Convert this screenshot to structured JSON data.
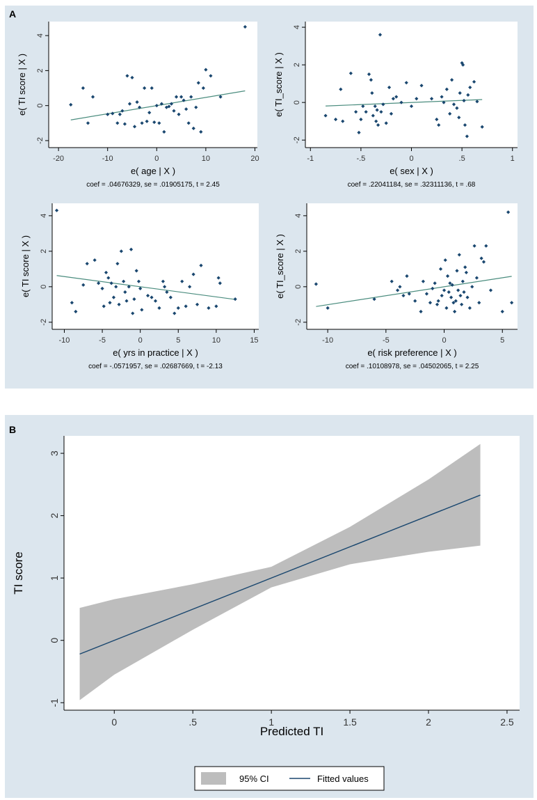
{
  "panels": {
    "a_label": "A",
    "b_label": "B"
  },
  "colors": {
    "panel_bg": "#dce6ee",
    "plot_bg": "#ffffff",
    "marker": "#1a476f",
    "fit_a": "#4a8c7e",
    "fit_b": "#1a476f",
    "ci_fill": "#bdbdbd"
  },
  "chart_data": [
    {
      "type": "scatter",
      "id": "age",
      "xlabel": "e( age | X )",
      "ylabel": "e( TI score | X )",
      "caption": "coef = .04676329, se = .01905175, t = 2.45",
      "xlim": [
        -22,
        20.5
      ],
      "ylim": [
        -2.4,
        4.8
      ],
      "xticks": [
        -20,
        -10,
        0,
        10,
        20
      ],
      "xtick_labels": [
        "-20",
        "-10",
        "0",
        "10",
        "20"
      ],
      "yticks": [
        -2,
        0,
        2,
        4
      ],
      "ytick_labels": [
        "-2",
        "0",
        "2",
        "4"
      ],
      "slope": 0.04676329,
      "points": [
        [
          -17.5,
          0.05
        ],
        [
          -15,
          1.0
        ],
        [
          -14,
          -1.0
        ],
        [
          -13,
          0.5
        ],
        [
          -10,
          -0.5
        ],
        [
          -9,
          -0.45
        ],
        [
          -8,
          -1.0
        ],
        [
          -7.5,
          -0.5
        ],
        [
          -7,
          -0.3
        ],
        [
          -6.5,
          -1.05
        ],
        [
          -6,
          1.7
        ],
        [
          -5.5,
          0.1
        ],
        [
          -5,
          1.6
        ],
        [
          -4.5,
          -1.2
        ],
        [
          -4,
          0.2
        ],
        [
          -3.5,
          -0.1
        ],
        [
          -3,
          -1.0
        ],
        [
          -2.5,
          1.0
        ],
        [
          -2,
          -0.9
        ],
        [
          -1.5,
          -0.4
        ],
        [
          -1,
          1.0
        ],
        [
          -0.5,
          -0.95
        ],
        [
          0,
          0.0
        ],
        [
          0.5,
          -1.0
        ],
        [
          1,
          0.1
        ],
        [
          1.5,
          -1.5
        ],
        [
          2,
          -0.1
        ],
        [
          2.5,
          -0.05
        ],
        [
          3,
          0.1
        ],
        [
          3.5,
          -0.3
        ],
        [
          4,
          0.5
        ],
        [
          4.5,
          -0.5
        ],
        [
          5,
          0.5
        ],
        [
          5.5,
          0.3
        ],
        [
          6,
          -0.2
        ],
        [
          6.5,
          -1.0
        ],
        [
          7,
          0.5
        ],
        [
          7.5,
          -1.3
        ],
        [
          8,
          -0.1
        ],
        [
          8.5,
          1.3
        ],
        [
          9,
          -1.5
        ],
        [
          9.5,
          1.0
        ],
        [
          10,
          2.05
        ],
        [
          11,
          1.7
        ],
        [
          13,
          0.5
        ],
        [
          18,
          4.5
        ]
      ]
    },
    {
      "type": "scatter",
      "id": "sex",
      "xlabel": "e( sex | X )",
      "ylabel": "e( TI_score | X )",
      "caption": "coef = .22041184, se = .32311136, t = .68",
      "xlim": [
        -1.05,
        1.05
      ],
      "ylim": [
        -2.4,
        4.3
      ],
      "xticks": [
        -1,
        -0.5,
        0,
        0.5,
        1
      ],
      "xtick_labels": [
        "-1",
        "-.5",
        "0",
        ".5",
        "1"
      ],
      "yticks": [
        -2,
        0,
        2,
        4
      ],
      "ytick_labels": [
        "-2",
        "0",
        "2",
        "4"
      ],
      "slope": 0.22041184,
      "points": [
        [
          -0.85,
          -0.7
        ],
        [
          -0.75,
          -0.9
        ],
        [
          -0.7,
          0.7
        ],
        [
          -0.68,
          -1.0
        ],
        [
          -0.6,
          1.55
        ],
        [
          -0.55,
          -0.5
        ],
        [
          -0.52,
          -1.6
        ],
        [
          -0.5,
          -0.9
        ],
        [
          -0.48,
          -0.2
        ],
        [
          -0.45,
          -0.5
        ],
        [
          -0.42,
          1.5
        ],
        [
          -0.4,
          1.2
        ],
        [
          -0.39,
          0.5
        ],
        [
          -0.38,
          -0.7
        ],
        [
          -0.36,
          -0.2
        ],
        [
          -0.35,
          -1.0
        ],
        [
          -0.34,
          -0.4
        ],
        [
          -0.33,
          -1.2
        ],
        [
          -0.31,
          3.6
        ],
        [
          -0.3,
          -0.5
        ],
        [
          -0.28,
          -0.1
        ],
        [
          -0.25,
          -1.1
        ],
        [
          -0.22,
          0.8
        ],
        [
          -0.2,
          -0.6
        ],
        [
          -0.18,
          0.2
        ],
        [
          -0.15,
          0.3
        ],
        [
          -0.1,
          0.0
        ],
        [
          -0.05,
          1.05
        ],
        [
          0.0,
          -0.2
        ],
        [
          0.05,
          0.2
        ],
        [
          0.1,
          0.9
        ],
        [
          0.2,
          0.2
        ],
        [
          0.25,
          -0.9
        ],
        [
          0.27,
          -1.2
        ],
        [
          0.3,
          0.3
        ],
        [
          0.32,
          0.0
        ],
        [
          0.35,
          0.7
        ],
        [
          0.38,
          -0.6
        ],
        [
          0.4,
          1.2
        ],
        [
          0.42,
          -0.1
        ],
        [
          0.45,
          -0.3
        ],
        [
          0.47,
          -0.8
        ],
        [
          0.48,
          0.5
        ],
        [
          0.5,
          2.1
        ],
        [
          0.51,
          2.0
        ],
        [
          0.52,
          0.1
        ],
        [
          0.53,
          -1.2
        ],
        [
          0.55,
          -1.8
        ],
        [
          0.56,
          0.4
        ],
        [
          0.58,
          0.8
        ],
        [
          0.62,
          1.1
        ],
        [
          0.65,
          0.05
        ],
        [
          0.7,
          -1.3
        ]
      ]
    },
    {
      "type": "scatter",
      "id": "yrs",
      "xlabel": "e( yrs in practice | X )",
      "ylabel": "e( TI score | X )",
      "caption": "coef = -.0571957, se = .02687669, t = -2.13",
      "xlim": [
        -11.6,
        15.6
      ],
      "ylim": [
        -2.4,
        4.7
      ],
      "xticks": [
        -10,
        -5,
        0,
        5,
        10,
        15
      ],
      "xtick_labels": [
        "-10",
        "-5",
        "0",
        "5",
        "10",
        "15"
      ],
      "yticks": [
        -2,
        0,
        2,
        4
      ],
      "ytick_labels": [
        "-2",
        "0",
        "2",
        "4"
      ],
      "slope": -0.0571957,
      "points": [
        [
          -11,
          4.3
        ],
        [
          -9,
          -0.9
        ],
        [
          -8.5,
          -1.4
        ],
        [
          -7.5,
          0.1
        ],
        [
          -7,
          1.3
        ],
        [
          -6,
          1.5
        ],
        [
          -5.5,
          0.2
        ],
        [
          -5,
          -0.1
        ],
        [
          -4.8,
          -1.1
        ],
        [
          -4.5,
          0.8
        ],
        [
          -4.2,
          0.5
        ],
        [
          -4,
          -0.9
        ],
        [
          -3.8,
          0.2
        ],
        [
          -3.5,
          -0.6
        ],
        [
          -3.2,
          0.0
        ],
        [
          -3,
          1.3
        ],
        [
          -2.8,
          -1.0
        ],
        [
          -2.5,
          2.0
        ],
        [
          -2.2,
          0.3
        ],
        [
          -2,
          -0.3
        ],
        [
          -1.8,
          -0.8
        ],
        [
          -1.5,
          0.0
        ],
        [
          -1.2,
          2.1
        ],
        [
          -1,
          -1.5
        ],
        [
          -0.8,
          -0.7
        ],
        [
          -0.5,
          0.9
        ],
        [
          -0.2,
          0.3
        ],
        [
          0,
          -0.1
        ],
        [
          0.2,
          -1.3
        ],
        [
          1,
          -0.5
        ],
        [
          1.5,
          -0.6
        ],
        [
          2,
          -0.8
        ],
        [
          2.5,
          -1.2
        ],
        [
          3,
          0.3
        ],
        [
          3.2,
          0.0
        ],
        [
          3.5,
          -0.3
        ],
        [
          4,
          -0.6
        ],
        [
          4.5,
          -1.5
        ],
        [
          5,
          -1.2
        ],
        [
          5.5,
          0.3
        ],
        [
          6,
          -1.1
        ],
        [
          6.5,
          0.0
        ],
        [
          7,
          0.7
        ],
        [
          7.5,
          -1.0
        ],
        [
          8,
          1.2
        ],
        [
          9,
          -1.2
        ],
        [
          10,
          -1.1
        ],
        [
          10.3,
          0.5
        ],
        [
          10.5,
          0.2
        ],
        [
          12.5,
          -0.7
        ]
      ]
    },
    {
      "type": "scatter",
      "id": "risk",
      "xlabel": "e( risk preference | X )",
      "ylabel": "e( TI_score | X )",
      "caption": "coef = .10108978, se = .04502065, t = 2.25",
      "xlim": [
        -11.8,
        6.3
      ],
      "ylim": [
        -2.4,
        4.7
      ],
      "xticks": [
        -10,
        -5,
        0,
        5
      ],
      "xtick_labels": [
        "-10",
        "-5",
        "0",
        "5"
      ],
      "yticks": [
        -2,
        0,
        2,
        4
      ],
      "ytick_labels": [
        "-2",
        "0",
        "2",
        "4"
      ],
      "slope": 0.10108978,
      "points": [
        [
          -11,
          0.15
        ],
        [
          -10,
          -1.2
        ],
        [
          -6,
          -0.7
        ],
        [
          -4.5,
          0.3
        ],
        [
          -4,
          -0.2
        ],
        [
          -3.8,
          0.0
        ],
        [
          -3.5,
          -0.5
        ],
        [
          -3.2,
          0.6
        ],
        [
          -3,
          -0.4
        ],
        [
          -2.5,
          -0.8
        ],
        [
          -2,
          -1.4
        ],
        [
          -1.8,
          0.3
        ],
        [
          -1.5,
          -0.4
        ],
        [
          -1.2,
          -0.9
        ],
        [
          -1,
          -0.1
        ],
        [
          -0.8,
          0.2
        ],
        [
          -0.6,
          -1.0
        ],
        [
          -0.5,
          -0.8
        ],
        [
          -0.3,
          1.0
        ],
        [
          -0.2,
          -0.5
        ],
        [
          0,
          -0.2
        ],
        [
          0.1,
          1.5
        ],
        [
          0.2,
          -1.2
        ],
        [
          0.3,
          0.6
        ],
        [
          0.4,
          -0.3
        ],
        [
          0.5,
          0.2
        ],
        [
          0.6,
          -0.6
        ],
        [
          0.7,
          0.1
        ],
        [
          0.8,
          -0.9
        ],
        [
          0.9,
          -1.4
        ],
        [
          1,
          -0.8
        ],
        [
          1.1,
          0.9
        ],
        [
          1.2,
          -0.2
        ],
        [
          1.3,
          1.8
        ],
        [
          1.4,
          -0.5
        ],
        [
          1.5,
          -1.0
        ],
        [
          1.6,
          0.3
        ],
        [
          1.7,
          -0.3
        ],
        [
          1.8,
          1.1
        ],
        [
          1.9,
          0.8
        ],
        [
          2,
          -0.6
        ],
        [
          2.2,
          -1.2
        ],
        [
          2.4,
          0.0
        ],
        [
          2.6,
          2.3
        ],
        [
          2.8,
          0.5
        ],
        [
          3,
          -0.9
        ],
        [
          3.2,
          1.6
        ],
        [
          3.4,
          1.4
        ],
        [
          3.6,
          2.3
        ],
        [
          4,
          -0.2
        ],
        [
          5,
          -1.4
        ],
        [
          5.5,
          4.2
        ],
        [
          5.8,
          -0.9
        ]
      ]
    },
    {
      "type": "line",
      "id": "predicted",
      "title": "",
      "xlabel": "Predicted TI",
      "ylabel": "TI score",
      "xlim": [
        -0.32,
        2.58
      ],
      "ylim": [
        -1.12,
        3.28
      ],
      "xticks": [
        0,
        0.5,
        1,
        1.5,
        2,
        2.5
      ],
      "xtick_labels": [
        "0",
        ".5",
        "1",
        "1.5",
        "2",
        "2.5"
      ],
      "yticks": [
        -1,
        0,
        1,
        2,
        3
      ],
      "ytick_labels": [
        "-1",
        "0",
        "1",
        "2",
        "3"
      ],
      "series": [
        {
          "name": "95% CI",
          "type": "band",
          "x": [
            -0.22,
            0.0,
            0.5,
            1.0,
            1.5,
            2.0,
            2.33
          ],
          "lower": [
            -0.96,
            -0.55,
            0.17,
            0.85,
            1.22,
            1.42,
            1.52
          ],
          "upper": [
            0.52,
            0.66,
            0.9,
            1.18,
            1.82,
            2.58,
            3.15
          ]
        },
        {
          "name": "Fitted values",
          "type": "line",
          "x": [
            -0.22,
            2.33
          ],
          "y": [
            -0.22,
            2.33
          ]
        }
      ],
      "legend": {
        "position": "bottom",
        "items": [
          "95% CI",
          "Fitted values"
        ]
      }
    }
  ]
}
